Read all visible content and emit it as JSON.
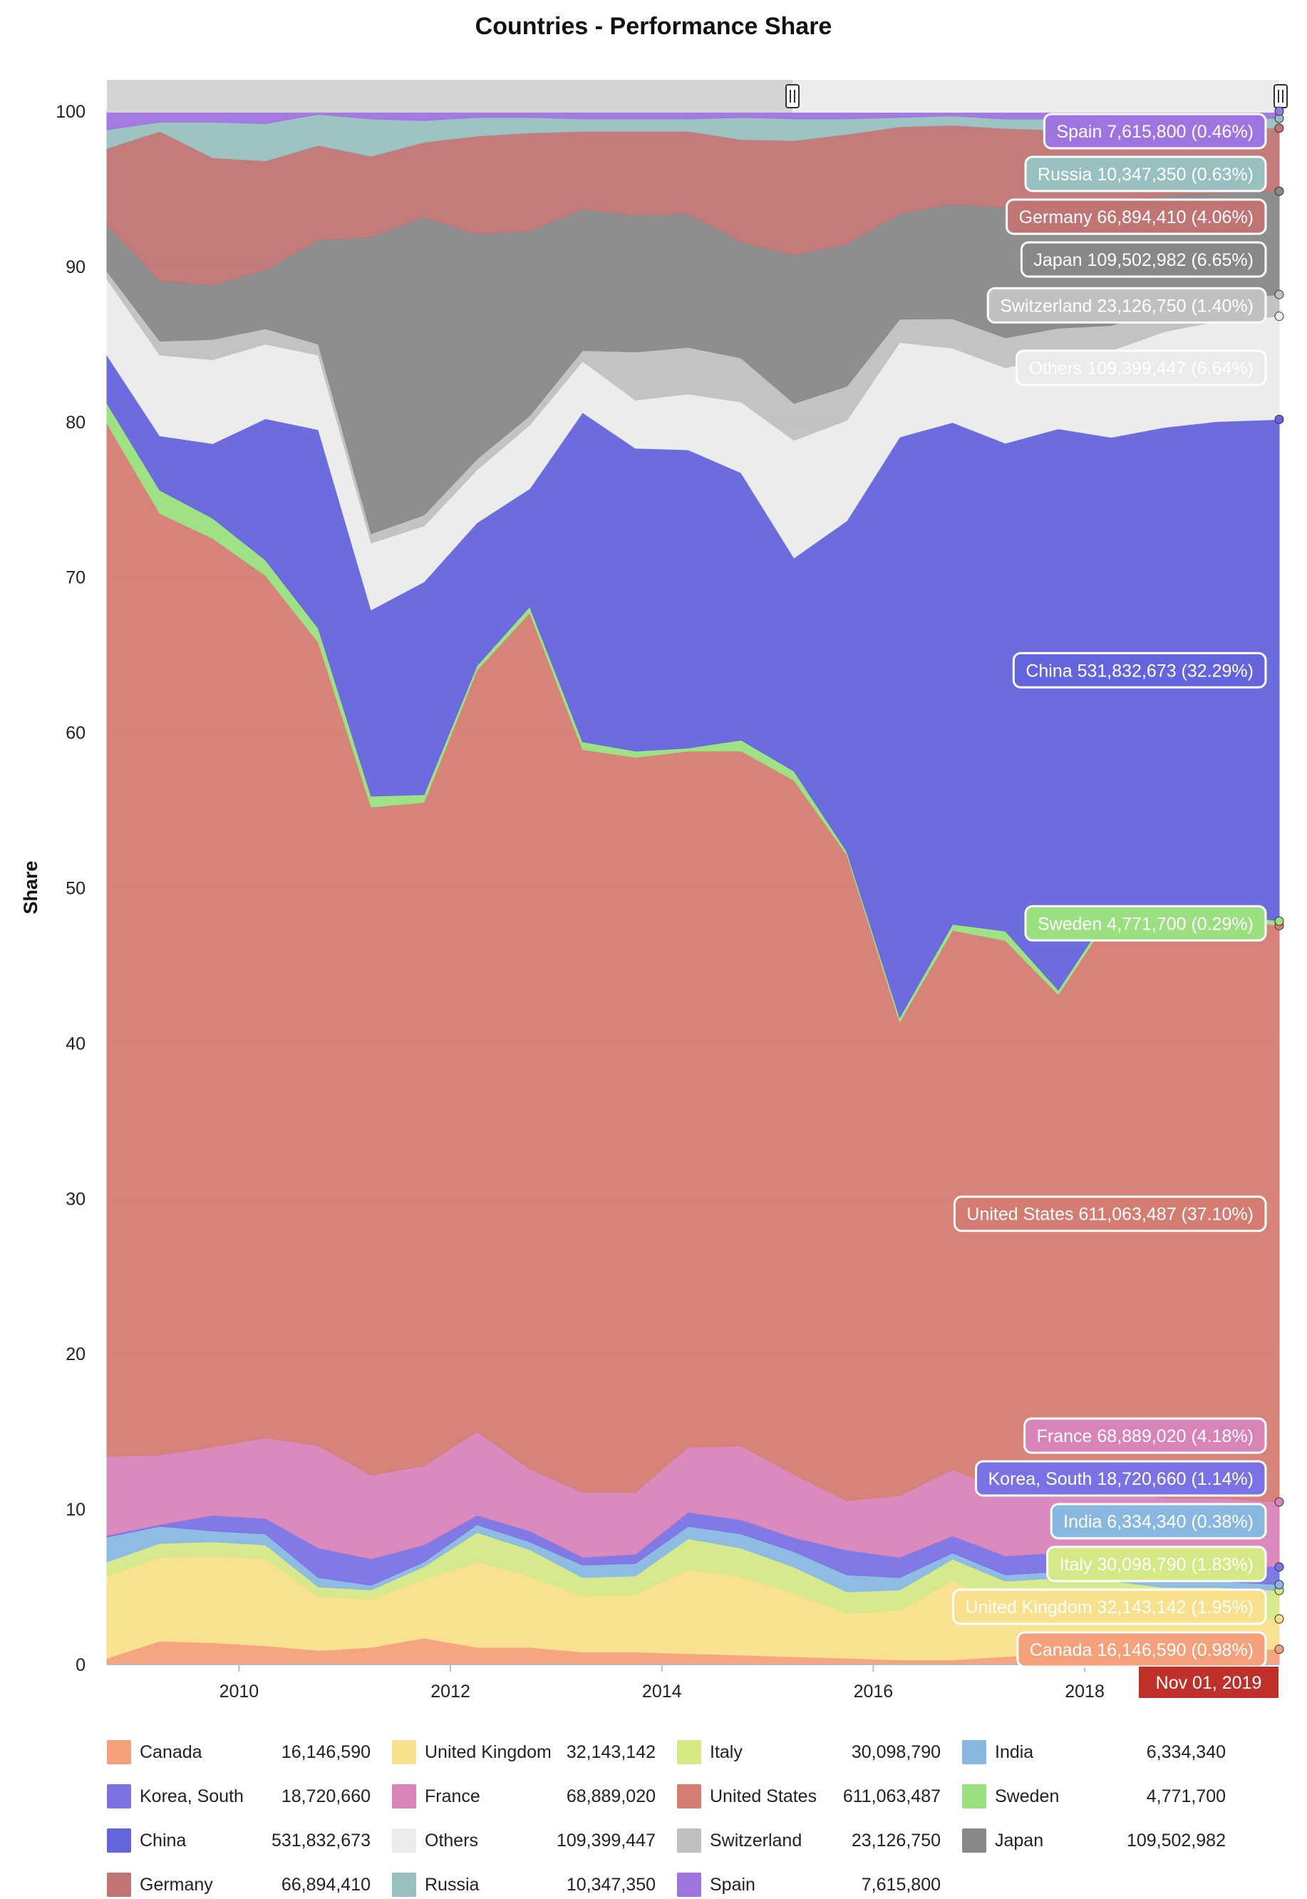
{
  "chart_data": {
    "type": "area",
    "stacked": "percent",
    "title": "Countries - Performance Share",
    "ylabel": "Share",
    "ylim": [
      0,
      100
    ],
    "y_ticks": [
      0,
      10,
      20,
      30,
      40,
      50,
      60,
      70,
      80,
      90,
      100
    ],
    "x_ticks": [
      "2010",
      "2012",
      "2014",
      "2016",
      "2018"
    ],
    "grid": "horizontal",
    "legend_placement": "bottom",
    "crosshair_date": "Nov 01, 2019",
    "x": [
      2008.75,
      2009.25,
      2009.75,
      2010.25,
      2010.75,
      2011.25,
      2011.75,
      2012.25,
      2012.75,
      2013.25,
      2013.75,
      2014.25,
      2014.75,
      2015.25,
      2015.75,
      2016.25,
      2016.75,
      2017.25,
      2017.75,
      2018.25,
      2018.75,
      2019.25,
      2019.84
    ],
    "series": [
      {
        "name": "Canada",
        "value": "16,146,590",
        "label": "Canada 16,146,590 (0.98%)",
        "color": "#f4a07a",
        "values": [
          0.4,
          1.5,
          1.4,
          1.2,
          0.9,
          1.1,
          1.7,
          1.1,
          1.1,
          0.8,
          0.8,
          0.7,
          0.6,
          0.5,
          0.4,
          0.3,
          0.3,
          0.5,
          0.7,
          0.8,
          0.9,
          1.0,
          0.98
        ]
      },
      {
        "name": "United Kingdom",
        "value": "32,143,142",
        "label": "United Kingdom 32,143,142 (1.95%)",
        "color": "#f8e08c",
        "values": [
          5.3,
          5.4,
          5.6,
          5.6,
          3.5,
          3.1,
          3.8,
          5.5,
          4.6,
          3.6,
          3.7,
          5.4,
          5.0,
          4.1,
          2.9,
          3.2,
          5.1,
          3.2,
          3.0,
          2.6,
          2.3,
          2.1,
          1.95
        ]
      },
      {
        "name": "Italy",
        "value": "30,098,790",
        "label": "Italy 30,098,790 (1.83%)",
        "color": "#d4e886",
        "values": [
          0.9,
          0.9,
          0.9,
          0.9,
          0.6,
          0.6,
          0.8,
          1.9,
          1.7,
          1.2,
          1.2,
          2.0,
          1.8,
          1.7,
          1.4,
          1.3,
          1.4,
          1.6,
          1.8,
          1.9,
          1.8,
          1.9,
          1.83
        ]
      },
      {
        "name": "India",
        "value": "6,334,340",
        "label": "India 6,334,340 (0.38%)",
        "color": "#88b8e0",
        "values": [
          1.6,
          1.1,
          0.7,
          0.7,
          0.6,
          0.3,
          0.3,
          0.5,
          0.5,
          0.8,
          0.8,
          0.8,
          0.9,
          1.0,
          1.1,
          0.8,
          0.4,
          0.4,
          0.4,
          0.4,
          0.4,
          0.4,
          0.38
        ]
      },
      {
        "name": "Korea, South",
        "value": "18,720,660",
        "label": "Korea, South 18,720,660 (1.14%)",
        "color": "#7a72e4",
        "values": [
          0.1,
          0.1,
          1.0,
          1.0,
          1.9,
          1.7,
          1.1,
          0.6,
          0.7,
          0.5,
          0.6,
          0.9,
          0.9,
          0.9,
          1.6,
          1.3,
          1.1,
          1.2,
          1.2,
          1.2,
          1.2,
          1.2,
          1.14
        ]
      },
      {
        "name": "France",
        "value": "68,889,020",
        "label": "France 68,889,020 (4.18%)",
        "color": "#d884b8",
        "values": [
          5.1,
          4.5,
          4.4,
          5.2,
          6.6,
          5.4,
          5.1,
          5.4,
          4.0,
          4.2,
          4.0,
          4.2,
          4.7,
          4.1,
          3.2,
          4.0,
          4.3,
          4.1,
          4.2,
          4.2,
          4.2,
          4.2,
          4.18
        ]
      },
      {
        "name": "United States",
        "value": "611,063,487",
        "label": "United States 611,063,487 (37.10%)",
        "color": "#d57c72",
        "values": [
          66.5,
          60.6,
          58.5,
          55.5,
          51.7,
          43.0,
          42.7,
          49.0,
          55.1,
          47.8,
          47.3,
          44.8,
          44.2,
          44.9,
          41.8,
          30.5,
          34.8,
          35.0,
          31.3,
          36.5,
          38.1,
          37.6,
          37.1
        ]
      },
      {
        "name": "Sweden",
        "value": "4,771,700",
        "label": "Sweden 4,771,700 (0.29%)",
        "color": "#9ae080",
        "values": [
          1.3,
          1.5,
          1.3,
          1.0,
          0.9,
          0.7,
          0.5,
          0.3,
          0.4,
          0.5,
          0.4,
          0.2,
          0.7,
          0.6,
          0.2,
          0.3,
          0.4,
          0.6,
          0.3,
          0.3,
          0.3,
          0.3,
          0.29
        ]
      },
      {
        "name": "China",
        "value": "531,832,673",
        "label": "China 531,832,673 (32.29%)",
        "color": "#6464dc",
        "values": [
          3.1,
          3.5,
          4.8,
          9.1,
          12.8,
          12.0,
          13.7,
          9.2,
          7.6,
          21.2,
          19.5,
          19.2,
          17.0,
          13.8,
          21.4,
          37.4,
          32.4,
          31.0,
          35.7,
          30.0,
          31.0,
          31.8,
          32.29
        ]
      },
      {
        "name": "Others",
        "value": "109,399,447",
        "label": "Others 109,399,447 (6.64%)",
        "color": "#ebebeb",
        "values": [
          4.9,
          5.2,
          5.4,
          4.8,
          4.8,
          4.3,
          3.6,
          3.4,
          4.1,
          3.3,
          3.1,
          3.6,
          4.5,
          7.6,
          6.5,
          6.1,
          4.8,
          4.8,
          4.6,
          5.5,
          6.2,
          6.5,
          6.64
        ]
      },
      {
        "name": "Switzerland",
        "value": "23,126,750",
        "label": "Switzerland 23,126,750 (1.40%)",
        "color": "#c0c0c0",
        "values": [
          0.5,
          0.9,
          1.3,
          1.0,
          0.7,
          0.6,
          0.7,
          0.7,
          0.6,
          0.7,
          3.1,
          3.0,
          2.8,
          2.4,
          2.2,
          1.5,
          1.9,
          1.9,
          1.8,
          1.6,
          1.5,
          1.4,
          1.4
        ]
      },
      {
        "name": "Japan",
        "value": "109,502,982",
        "label": "Japan 109,502,982 (6.65%)",
        "color": "#888888",
        "values": [
          3.0,
          3.9,
          3.5,
          3.8,
          6.7,
          19.1,
          19.2,
          14.5,
          11.9,
          9.1,
          8.8,
          8.6,
          7.4,
          9.6,
          9.2,
          6.8,
          7.4,
          8.3,
          8.0,
          7.9,
          7.3,
          6.9,
          6.65
        ]
      },
      {
        "name": "Germany",
        "value": "66,894,410",
        "label": "Germany 66,894,410 (4.06%)",
        "color": "#c07474",
        "values": [
          4.9,
          9.6,
          8.2,
          7.0,
          6.1,
          5.2,
          4.8,
          6.3,
          6.3,
          5.0,
          5.4,
          5.3,
          6.5,
          7.4,
          7.1,
          5.6,
          5.1,
          5.0,
          4.6,
          4.5,
          4.3,
          4.2,
          4.06
        ]
      },
      {
        "name": "Russia",
        "value": "10,347,350",
        "label": "Russia 10,347,350 (0.63%)",
        "color": "#98c0c0",
        "values": [
          1.2,
          0.6,
          2.3,
          2.4,
          2.0,
          2.4,
          1.4,
          1.2,
          1.0,
          0.8,
          0.8,
          0.8,
          1.4,
          1.4,
          1.0,
          0.6,
          0.6,
          0.6,
          0.7,
          0.7,
          0.7,
          0.6,
          0.63
        ]
      },
      {
        "name": "Spain",
        "value": "7,615,800",
        "label": "Spain 7,615,800 (0.46%)",
        "color": "#9e74e0",
        "values": [
          1.2,
          0.7,
          0.7,
          0.8,
          0.2,
          0.5,
          0.6,
          0.4,
          0.4,
          0.5,
          0.5,
          0.5,
          0.4,
          0.5,
          0.5,
          0.4,
          0.3,
          0.5,
          0.5,
          0.5,
          0.5,
          0.5,
          0.46
        ]
      }
    ]
  }
}
